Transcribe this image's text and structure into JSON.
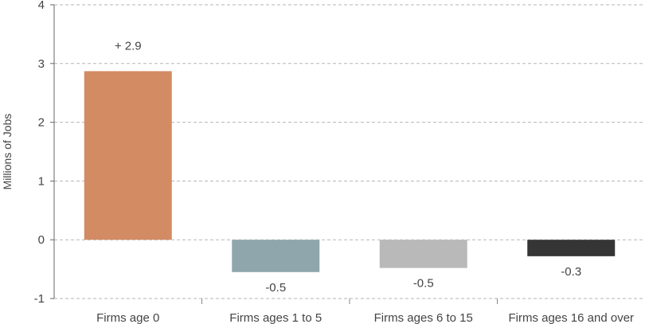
{
  "chart_data": {
    "type": "bar",
    "ylabel": "Millions of Jobs",
    "ylim": [
      -1,
      4
    ],
    "yticks": [
      -1,
      0,
      1,
      2,
      3,
      4
    ],
    "grid": true,
    "categories": [
      "Firms age 0",
      "Firms ages 1 to 5",
      "Firms ages 6 to 15",
      "Firms ages 16 and over"
    ],
    "values": [
      2.87,
      -0.55,
      -0.48,
      -0.28
    ],
    "data_labels": [
      "+ 2.9",
      "-0.5",
      "-0.5",
      "-0.3"
    ],
    "colors": [
      "#D38B64",
      "#8FA6AC",
      "#B9B9B9",
      "#353535"
    ]
  }
}
